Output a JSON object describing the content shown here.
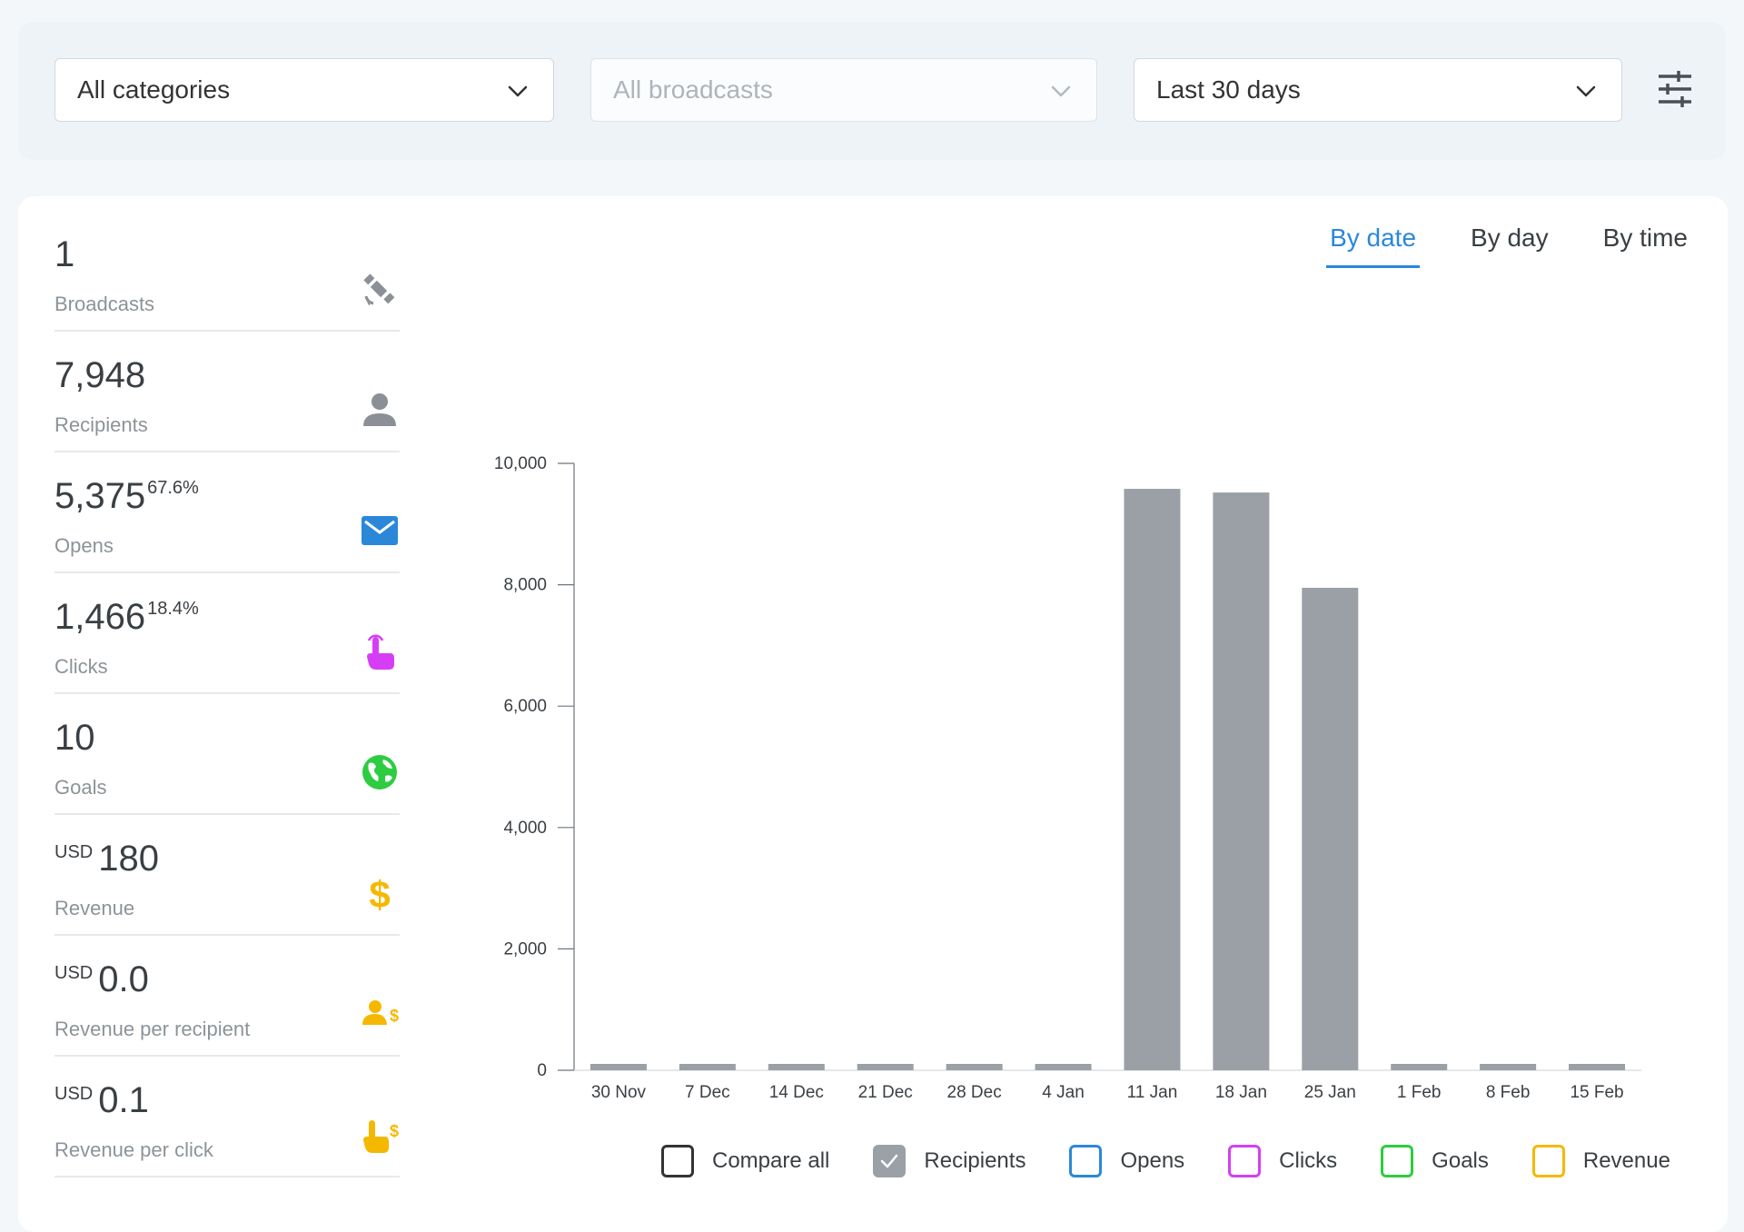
{
  "filters": {
    "category": "All categories",
    "broadcast": "All broadcasts",
    "period": "Last 30 days"
  },
  "stats": [
    {
      "value": "1",
      "pct": "",
      "currency": "",
      "label": "Broadcasts",
      "icon": "satellite-icon",
      "color": "#8a9096"
    },
    {
      "value": "7,948",
      "pct": "",
      "currency": "",
      "label": "Recipients",
      "icon": "person-icon",
      "color": "#8a9096"
    },
    {
      "value": "5,375",
      "pct": "67.6%",
      "currency": "",
      "label": "Opens",
      "icon": "envelope-icon",
      "color": "#2b88d8"
    },
    {
      "value": "1,466",
      "pct": "18.4%",
      "currency": "",
      "label": "Clicks",
      "icon": "pointer-hand-icon",
      "color": "#d63ef5"
    },
    {
      "value": "10",
      "pct": "",
      "currency": "",
      "label": "Goals",
      "icon": "globe-icon",
      "color": "#2ecc40"
    },
    {
      "value": "180",
      "pct": "",
      "currency": "USD",
      "label": "Revenue",
      "icon": "dollar-icon",
      "color": "#f5b800"
    },
    {
      "value": "0.0",
      "pct": "",
      "currency": "USD",
      "label": "Revenue per recipient",
      "icon": "person-dollar-icon",
      "color": "#f5b800"
    },
    {
      "value": "0.1",
      "pct": "",
      "currency": "USD",
      "label": "Revenue per click",
      "icon": "hand-dollar-icon",
      "color": "#f5b800"
    }
  ],
  "tabs": [
    {
      "label": "By date",
      "active": true
    },
    {
      "label": "By day",
      "active": false
    },
    {
      "label": "By time",
      "active": false
    }
  ],
  "legend": [
    {
      "label": "Compare all",
      "color": "#333333",
      "checked": false
    },
    {
      "label": "Recipients",
      "color": "#9aa0a6",
      "checked": true
    },
    {
      "label": "Opens",
      "color": "#2b88d8",
      "checked": false
    },
    {
      "label": "Clicks",
      "color": "#d63ef5",
      "checked": false
    },
    {
      "label": "Goals",
      "color": "#2ecc40",
      "checked": false
    },
    {
      "label": "Revenue",
      "color": "#f5b800",
      "checked": false
    }
  ],
  "chart_data": {
    "type": "bar",
    "categories": [
      "30 Nov",
      "7 Dec",
      "14 Dec",
      "21 Dec",
      "28 Dec",
      "4 Jan",
      "11 Jan",
      "18 Jan",
      "25 Jan",
      "1 Feb",
      "8 Feb",
      "15 Feb"
    ],
    "series": [
      {
        "values": [
          0,
          0,
          0,
          0,
          0,
          0,
          9580,
          9520,
          7950,
          0,
          0,
          0
        ],
        "color": "#9aa0a6"
      }
    ],
    "ylim": [
      0,
      10000
    ],
    "yticks": [
      "0",
      "2,000",
      "4,000",
      "6,000",
      "8,000",
      "10,000"
    ],
    "grid": false,
    "legend": "bottom"
  }
}
